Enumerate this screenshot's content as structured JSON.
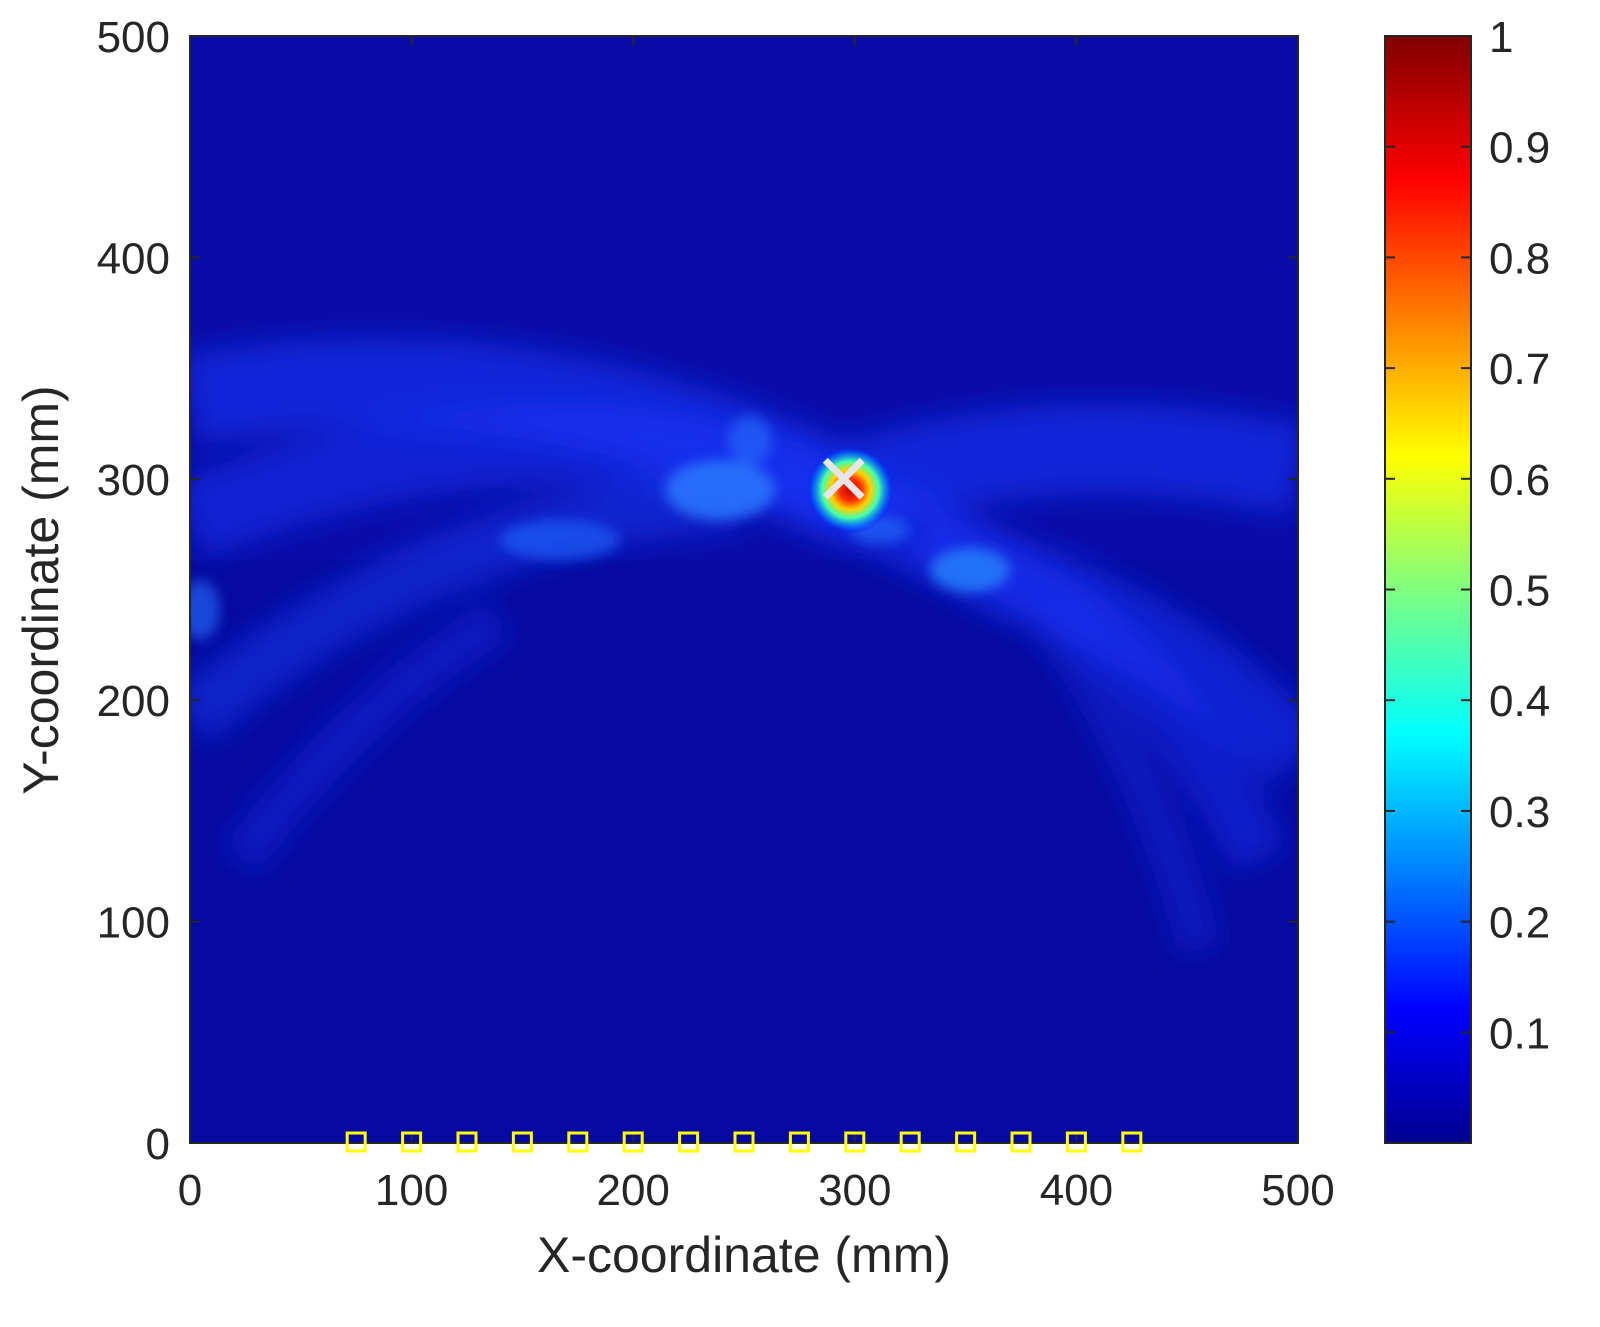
{
  "chart_data": {
    "type": "heatmap",
    "title": "",
    "xlabel": "X-coordinate (mm)",
    "ylabel": "Y-coordinate (mm)",
    "xlim": [
      0,
      500
    ],
    "ylim": [
      0,
      500
    ],
    "x_ticks": [
      "0",
      "100",
      "200",
      "300",
      "400",
      "500"
    ],
    "y_ticks": [
      "0",
      "100",
      "200",
      "300",
      "400",
      "500"
    ],
    "colormap": "jet",
    "colorbar": {
      "range": [
        0,
        1
      ],
      "ticks": [
        "0.1",
        "0.2",
        "0.3",
        "0.4",
        "0.5",
        "0.6",
        "0.7",
        "0.8",
        "0.9",
        "1"
      ]
    },
    "background_intensity": 0.05,
    "arc_band": {
      "description_values": {
        "left_y_range": [
          200,
          350
        ],
        "right_y_range": [
          150,
          320
        ]
      },
      "intensity": 0.2
    },
    "peak": {
      "x": 298,
      "y": 295,
      "intensity": 1.0
    },
    "estimated_location_marker": {
      "x": 295,
      "y": 300,
      "symbol": "x",
      "color": "#e6e6e6"
    },
    "sensors": {
      "symbol": "square",
      "color": "#ffff00",
      "y": 0,
      "x": [
        75,
        100,
        125,
        150,
        175,
        200,
        225,
        250,
        275,
        300,
        325,
        350,
        375,
        400,
        425
      ]
    }
  }
}
